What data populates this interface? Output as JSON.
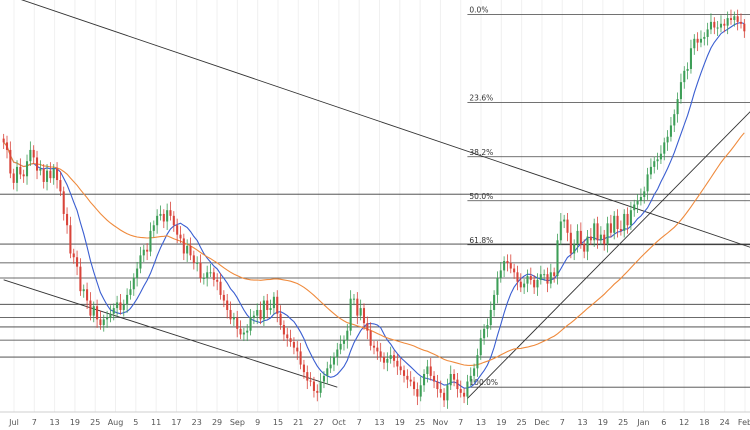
{
  "chart_data": {
    "type": "candlestick",
    "title": "",
    "xlabel": "",
    "ylabel": "",
    "x_tick_labels": [
      "Jul",
      "7",
      "13",
      "19",
      "25",
      "Aug",
      "5",
      "11",
      "17",
      "23",
      "29",
      "Sep",
      "9",
      "15",
      "21",
      "27",
      "Oct",
      "7",
      "13",
      "19",
      "25",
      "Nov",
      "7",
      "13",
      "19",
      "25",
      "Dec",
      "7",
      "13",
      "19",
      "25",
      "Jan",
      "6",
      "12",
      "18",
      "24",
      "Feb"
    ],
    "fib_levels": [
      {
        "label": "0.0%",
        "ratio": 0.0
      },
      {
        "label": "23.6%",
        "ratio": 0.236
      },
      {
        "label": "38.2%",
        "ratio": 0.382
      },
      {
        "label": "50.0%",
        "ratio": 0.5
      },
      {
        "label": "61.8%",
        "ratio": 0.618
      },
      {
        "label": "100.0%",
        "ratio": 1.0
      }
    ],
    "fib_anchor_indices": [
      139,
      212
    ],
    "horizontal_levels": [
      0.3,
      0.48,
      0.62,
      0.72,
      0.86,
      1.14,
      1.3,
      1.5,
      2.03
    ],
    "candles_close": [
      2.58,
      2.5,
      2.25,
      2.15,
      2.32,
      2.24,
      2.22,
      2.38,
      2.5,
      2.42,
      2.28,
      2.3,
      2.16,
      2.28,
      2.2,
      2.3,
      2.18,
      2.06,
      1.82,
      1.7,
      1.4,
      1.36,
      1.26,
      1.0,
      1.02,
      0.9,
      0.74,
      0.84,
      0.7,
      0.64,
      0.7,
      0.72,
      0.76,
      0.82,
      0.88,
      0.8,
      0.86,
      0.96,
      1.02,
      1.14,
      1.24,
      1.38,
      1.44,
      1.42,
      1.64,
      1.7,
      1.8,
      1.82,
      1.74,
      1.86,
      1.8,
      1.7,
      1.6,
      1.56,
      1.4,
      1.48,
      1.38,
      1.3,
      1.3,
      1.14,
      1.14,
      1.2,
      1.2,
      1.12,
      1.1,
      0.96,
      0.9,
      0.8,
      0.7,
      0.72,
      0.6,
      0.54,
      0.56,
      0.58,
      0.72,
      0.74,
      0.8,
      0.7,
      0.9,
      0.8,
      0.82,
      0.94,
      0.76,
      0.64,
      0.54,
      0.5,
      0.46,
      0.4,
      0.36,
      0.22,
      0.14,
      0.05,
      0.04,
      -0.06,
      -0.08,
      0.04,
      0.1,
      0.18,
      0.22,
      0.3,
      0.38,
      0.44,
      0.48,
      0.58,
      0.92,
      0.92,
      0.74,
      0.82,
      0.66,
      0.58,
      0.42,
      0.4,
      0.36,
      0.3,
      0.24,
      0.28,
      0.32,
      0.26,
      0.2,
      0.16,
      0.1,
      0.06,
      0.04,
      -0.04,
      -0.12,
      0.0,
      0.12,
      0.2,
      0.1,
      0.04,
      -0.04,
      -0.08,
      -0.16,
      0.0,
      0.12,
      0.06,
      -0.04,
      -0.08,
      -0.12,
      0.04,
      0.1,
      0.18,
      0.32,
      0.5,
      0.6,
      0.64,
      0.8,
      0.96,
      1.14,
      1.22,
      1.32,
      1.3,
      1.24,
      1.2,
      1.1,
      1.04,
      1.08,
      1.16,
      1.12,
      1.04,
      1.12,
      1.18,
      1.18,
      1.08,
      1.2,
      1.16,
      1.54,
      1.74,
      1.76,
      1.62,
      1.4,
      1.5,
      1.64,
      1.5,
      1.42,
      1.58,
      1.54,
      1.72,
      1.54,
      1.6,
      1.5,
      1.72,
      1.62,
      1.8,
      1.66,
      1.64,
      1.82,
      1.7,
      1.86,
      1.92,
      1.96,
      2.0,
      2.06,
      2.24,
      2.32,
      2.38,
      2.4,
      2.46,
      2.58,
      2.64,
      2.76,
      2.88,
      3.04,
      3.22,
      3.34,
      3.36,
      3.58,
      3.68,
      3.64,
      3.68,
      3.7,
      3.78,
      3.86,
      3.8,
      3.8,
      3.84,
      3.82,
      3.9,
      3.88,
      3.92,
      3.86,
      3.84,
      3.76
    ],
    "line_series": [
      {
        "color": "#3a5ed1",
        "period": 10
      },
      {
        "color": "#ef8a3c",
        "period": 50
      }
    ],
    "trendlines": [
      {
        "start": {
          "i": 0,
          "v": 4.16
        },
        "end": {
          "i": 250,
          "v": 1.15
        }
      },
      {
        "start": {
          "i": 0,
          "v": 1.12
        },
        "end": {
          "i": 100,
          "v": -0.02
        }
      },
      {
        "start": {
          "i": 139,
          "v": -0.14
        },
        "end": {
          "i": 250,
          "v": 3.85
        }
      }
    ]
  }
}
